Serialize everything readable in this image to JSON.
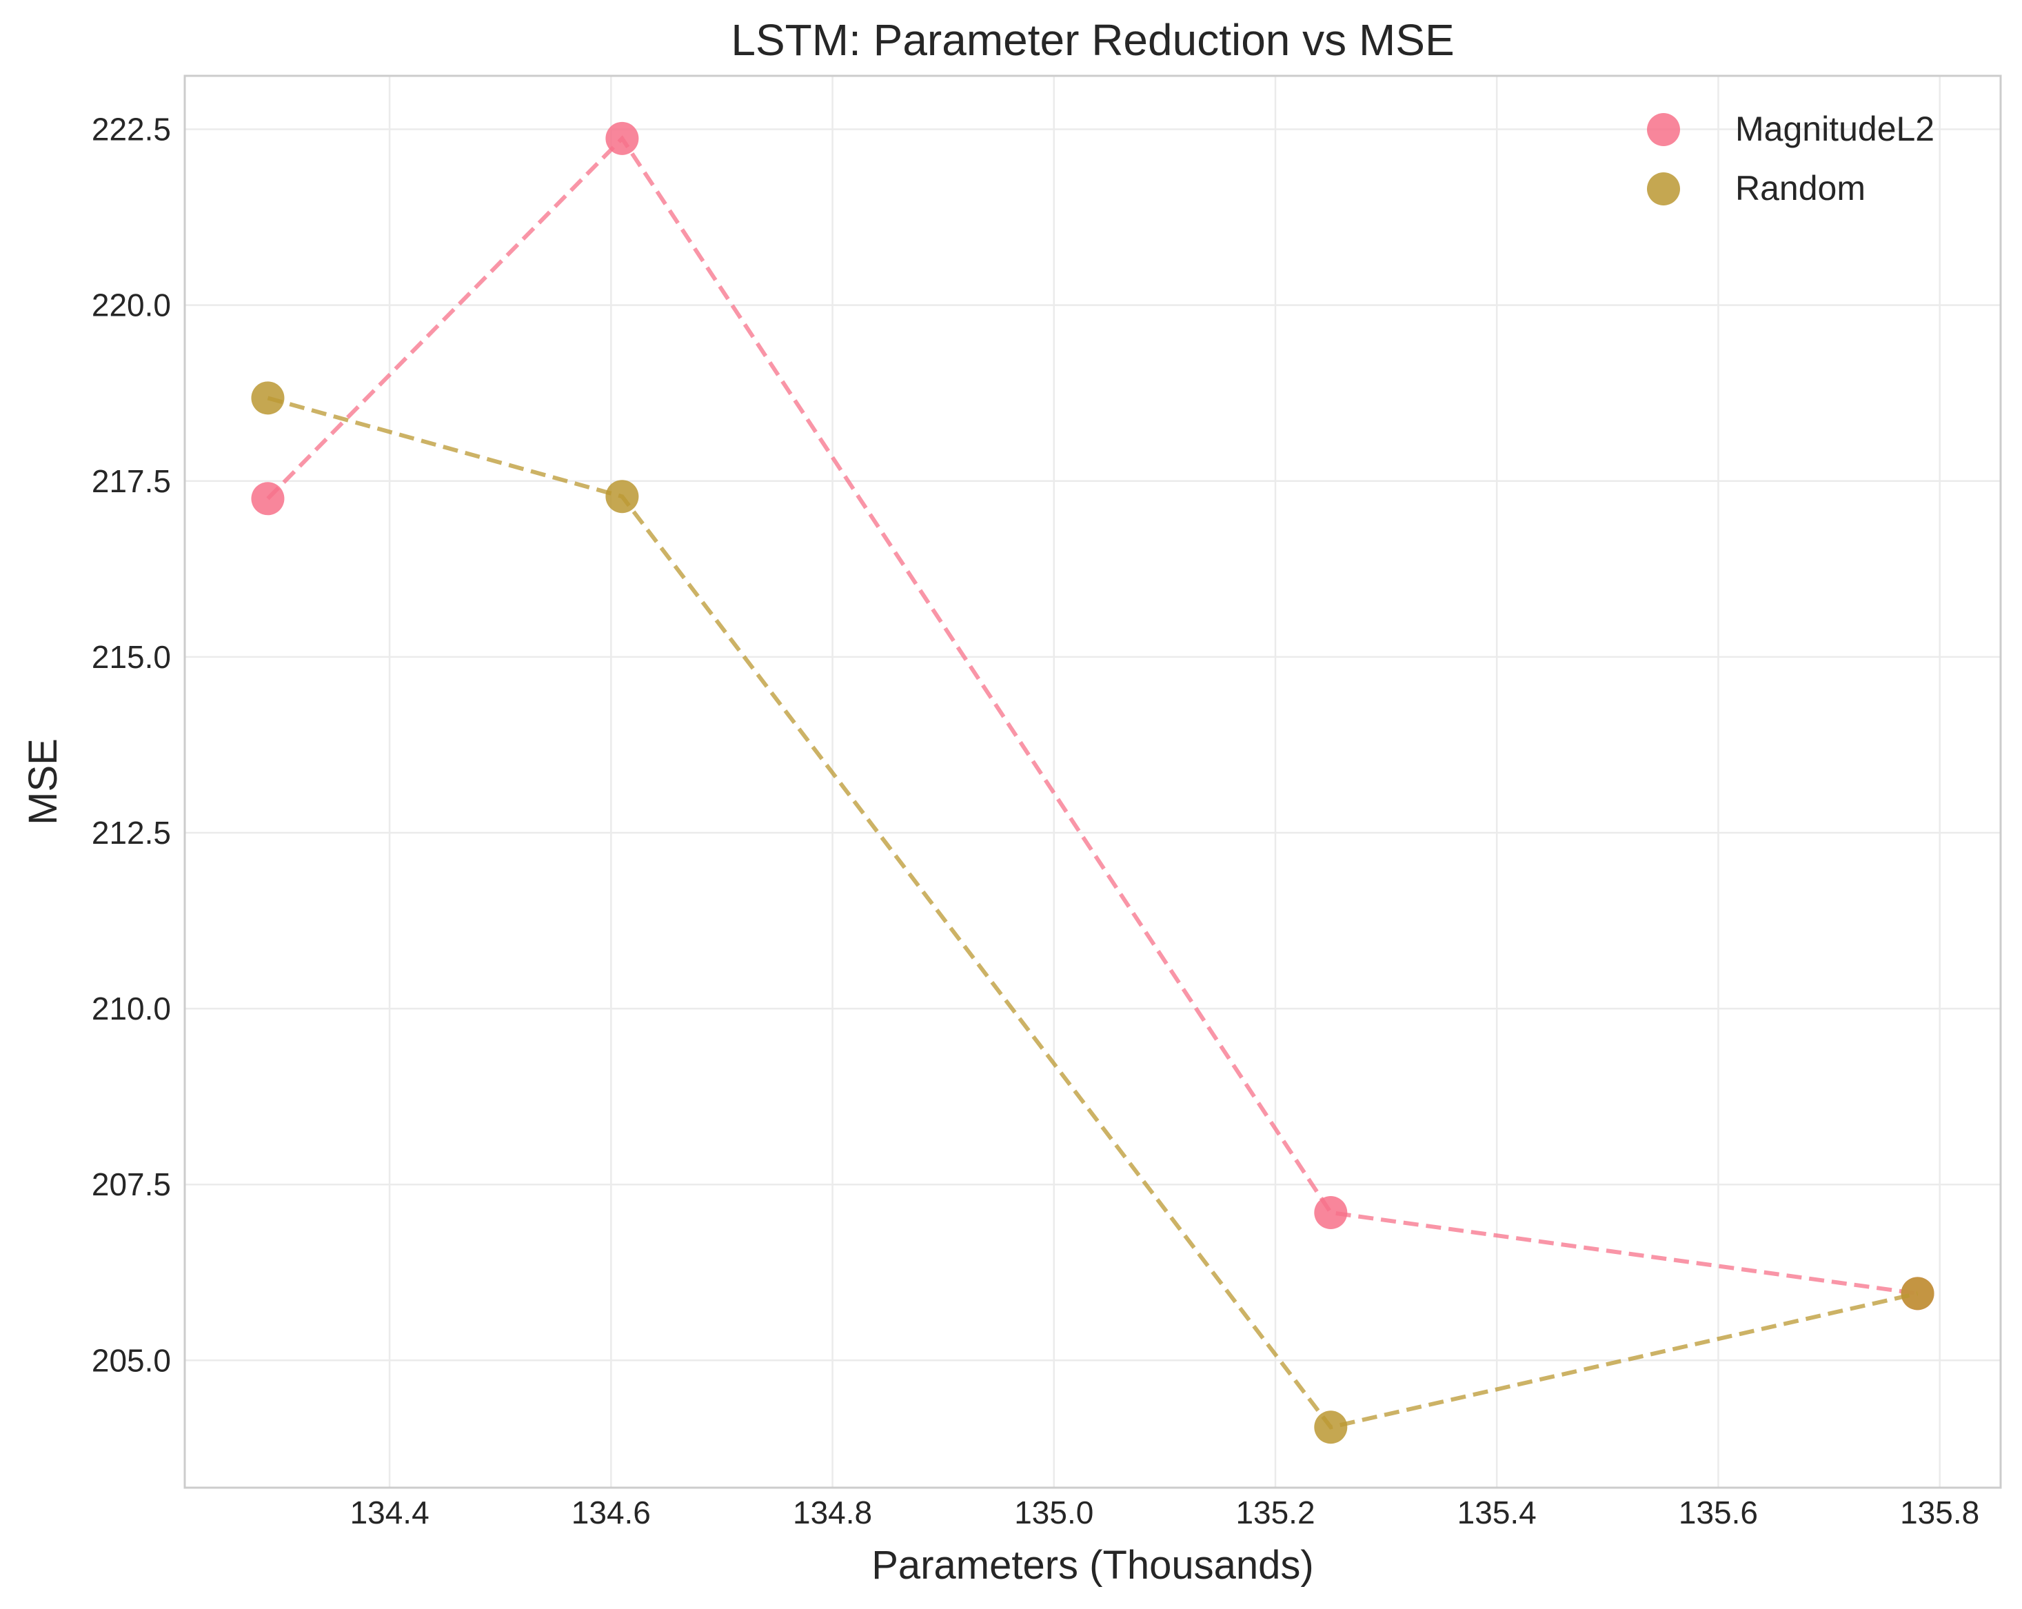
{
  "chart_data": {
    "type": "scatter",
    "title": "LSTM: Parameter Reduction vs MSE",
    "xlabel": "Parameters (Thousands)",
    "ylabel": "MSE",
    "xlim": [
      134.215,
      135.855
    ],
    "ylim": [
      203.19,
      223.26
    ],
    "x_ticks": [
      134.4,
      134.6,
      134.8,
      135.0,
      135.2,
      135.4,
      135.6,
      135.8
    ],
    "x_tick_labels": [
      "134.4",
      "134.6",
      "134.8",
      "135.0",
      "135.2",
      "135.4",
      "135.6",
      "135.8"
    ],
    "y_ticks": [
      205.0,
      207.5,
      210.0,
      212.5,
      215.0,
      217.5,
      220.0,
      222.5
    ],
    "y_tick_labels": [
      "205.0",
      "207.5",
      "210.0",
      "212.5",
      "215.0",
      "217.5",
      "220.0",
      "222.5"
    ],
    "grid": true,
    "legend_position": "top-right",
    "line_style": "dashed",
    "series": [
      {
        "name": "MagnitudeL2",
        "color": "#f77189",
        "points": [
          {
            "x": 134.29,
            "y": 217.25
          },
          {
            "x": 134.61,
            "y": 222.37
          },
          {
            "x": 135.25,
            "y": 207.1
          },
          {
            "x": 135.78,
            "y": 205.95
          }
        ]
      },
      {
        "name": "Random",
        "color": "#bb9832",
        "points": [
          {
            "x": 134.29,
            "y": 218.68
          },
          {
            "x": 134.61,
            "y": 217.28
          },
          {
            "x": 135.25,
            "y": 204.05
          },
          {
            "x": 135.78,
            "y": 205.95
          }
        ]
      }
    ]
  }
}
